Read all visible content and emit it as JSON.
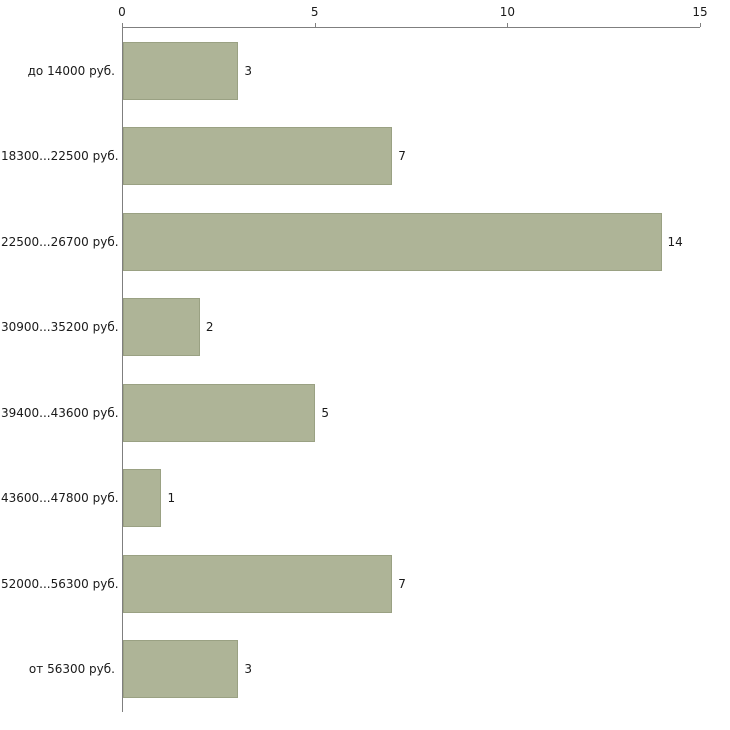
{
  "chart_data": {
    "type": "bar",
    "orientation": "horizontal",
    "title": "",
    "xlabel": "",
    "ylabel": "",
    "categories": [
      "до 14000 руб.",
      "18300...22500 руб.",
      "22500...26700 руб.",
      "30900...35200 руб.",
      "39400...43600 руб.",
      "43600...47800 руб.",
      "52000...56300 руб.",
      "от 56300 руб."
    ],
    "values": [
      3,
      7,
      14,
      2,
      5,
      1,
      7,
      3
    ],
    "xlim": [
      0,
      15
    ],
    "x_ticks": [
      0,
      5,
      10,
      15
    ],
    "grid": false,
    "legend": false,
    "axis_position": "top-left",
    "bar_color": "#aeb497",
    "bar_border_color": "#9aa183",
    "axis_color": "#7f7f7f",
    "text_color": "#1a1a1a",
    "background_color": "#ffffff"
  }
}
